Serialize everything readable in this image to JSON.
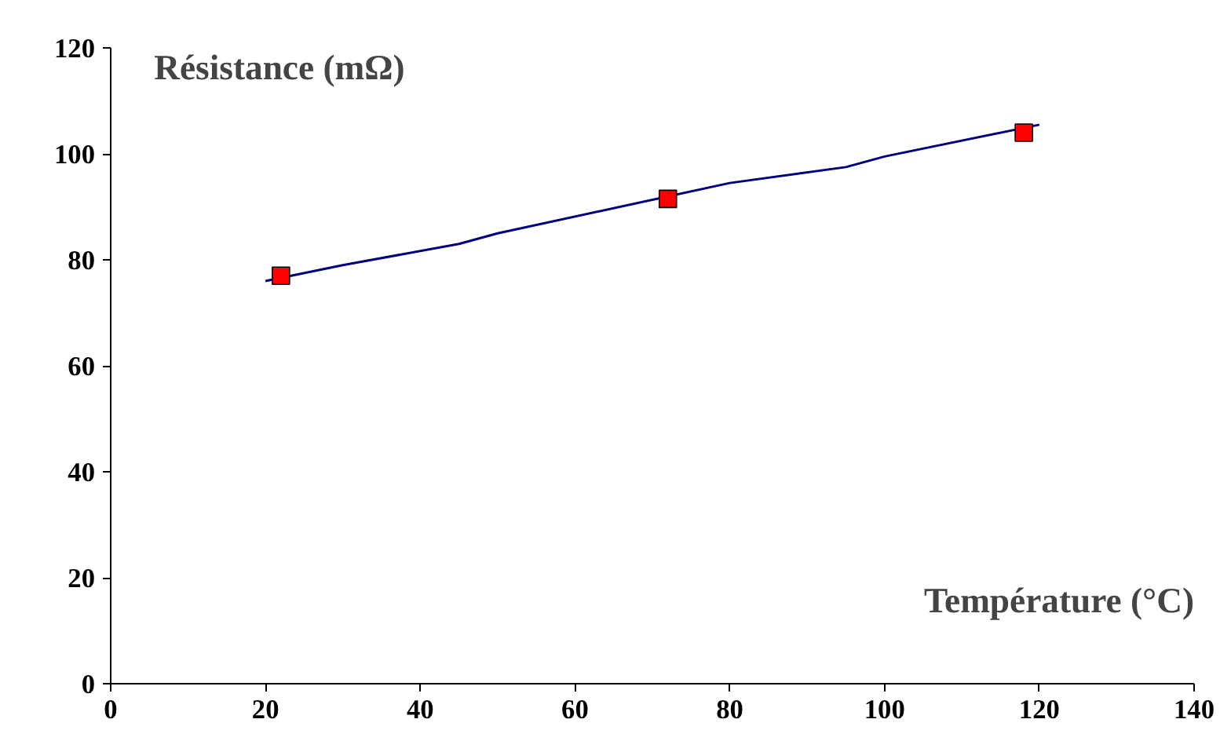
{
  "chart_data": {
    "type": "line",
    "xlabel": "Température (°C)",
    "ylabel": "Résistance (mΩ)",
    "xlim": [
      0,
      140
    ],
    "ylim": [
      0,
      120
    ],
    "xticks": [
      0,
      20,
      40,
      60,
      80,
      100,
      120,
      140
    ],
    "yticks": [
      0,
      20,
      40,
      60,
      80,
      100,
      120
    ],
    "grid": false,
    "series": [
      {
        "color": "#000080",
        "marker": "none",
        "x": [
          20,
          30,
          45,
          50,
          80,
          95,
          100,
          120
        ],
        "values": [
          76,
          79,
          83,
          85,
          94.5,
          97.5,
          99.5,
          105.5
        ]
      },
      {
        "type": "scatter",
        "color": "#ff0000",
        "marker": "square",
        "x": [
          22,
          72,
          118
        ],
        "values": [
          77,
          91.5,
          104
        ]
      }
    ]
  }
}
